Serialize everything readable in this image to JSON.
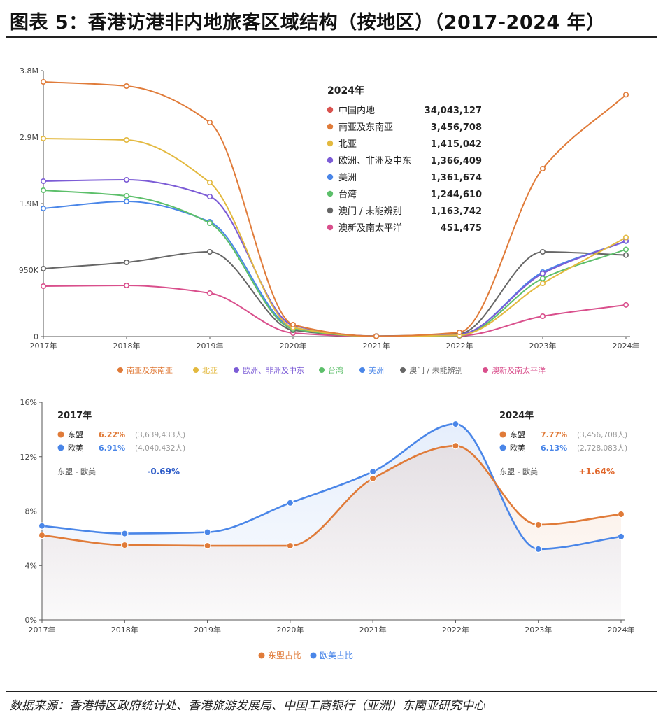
{
  "title": "图表 5：香港访港非内地旅客区域结构（按地区）（2017-2024 年）",
  "source": "数据来源：香港特区政府统计处、香港旅游发展局、中国工商银行（亚洲）东南亚研究中心",
  "chart_data": [
    {
      "type": "line",
      "title": "",
      "x": [
        "2017年",
        "2018年",
        "2019年",
        "2020年",
        "2021年",
        "2022年",
        "2023年",
        "2024年"
      ],
      "ylim": [
        0,
        3800000
      ],
      "yticks": [
        {
          "value": 0,
          "label": "0"
        },
        {
          "value": 950000,
          "label": "950K"
        },
        {
          "value": 1900000,
          "label": "1.9M"
        },
        {
          "value": 2850000,
          "label": "2.9M"
        },
        {
          "value": 3800000,
          "label": "3.8M"
        }
      ],
      "series": [
        {
          "name": "南亚及东南亚",
          "color": "#e07b39",
          "values": [
            3640000,
            3580000,
            3060000,
            170000,
            5000,
            60000,
            2400000,
            3456708
          ]
        },
        {
          "name": "北亚",
          "color": "#e3b93f",
          "values": [
            2830000,
            2810000,
            2200000,
            130000,
            4000,
            20000,
            760000,
            1415042
          ]
        },
        {
          "name": "欧洲、非洲及中东",
          "color": "#7c5cd6",
          "values": [
            2220000,
            2240000,
            2000000,
            160000,
            5000,
            30000,
            900000,
            1366409
          ]
        },
        {
          "name": "台湾",
          "color": "#5cbf6a",
          "values": [
            2090000,
            2010000,
            1620000,
            110000,
            3000,
            15000,
            830000,
            1244610
          ]
        },
        {
          "name": "美洲",
          "color": "#4a86e8",
          "values": [
            1830000,
            1930000,
            1640000,
            130000,
            5000,
            25000,
            920000,
            1361674
          ]
        },
        {
          "name": "澳门 / 未能辨别",
          "color": "#666666",
          "values": [
            970000,
            1060000,
            1210000,
            90000,
            8000,
            40000,
            1210000,
            1163742
          ]
        },
        {
          "name": "澳新及南太平洋",
          "color": "#d94f8c",
          "values": [
            720000,
            730000,
            620000,
            50000,
            3000,
            10000,
            290000,
            451475
          ]
        }
      ],
      "tooltip": {
        "title": "2024年",
        "items": [
          {
            "name": "中国内地",
            "value": "34,043,127",
            "color": "#d9534f"
          },
          {
            "name": "南亚及东南亚",
            "value": "3,456,708",
            "color": "#e07b39"
          },
          {
            "name": "北亚",
            "value": "1,415,042",
            "color": "#e3b93f"
          },
          {
            "name": "欧洲、非洲及中东",
            "value": "1,366,409",
            "color": "#7c5cd6"
          },
          {
            "name": "美洲",
            "value": "1,361,674",
            "color": "#4a86e8"
          },
          {
            "name": "台湾",
            "value": "1,244,610",
            "color": "#5cbf6a"
          },
          {
            "name": "澳门 / 未能辨别",
            "value": "1,163,742",
            "color": "#666666"
          },
          {
            "name": "澳新及南太平洋",
            "value": "451,475",
            "color": "#d94f8c"
          }
        ]
      },
      "legend": [
        "南亚及东南亚",
        "北亚",
        "欧洲、非洲及中东",
        "台湾",
        "美洲",
        "澳门 / 未能辨别",
        "澳新及南太平洋"
      ]
    },
    {
      "type": "area",
      "title": "",
      "x": [
        "2017年",
        "2018年",
        "2019年",
        "2020年",
        "2021年",
        "2022年",
        "2023年",
        "2024年"
      ],
      "ylim": [
        0,
        16
      ],
      "yticks": [
        {
          "value": 0,
          "label": "0%"
        },
        {
          "value": 4,
          "label": "4%"
        },
        {
          "value": 8,
          "label": "8%"
        },
        {
          "value": 12,
          "label": "12%"
        },
        {
          "value": 16,
          "label": "16%"
        }
      ],
      "series": [
        {
          "name": "东盟占比",
          "color": "#e07b39",
          "values": [
            6.22,
            5.5,
            5.45,
            5.45,
            10.4,
            12.8,
            7.0,
            7.77
          ]
        },
        {
          "name": "欧美占比",
          "color": "#4a86e8",
          "values": [
            6.91,
            6.35,
            6.45,
            8.6,
            10.9,
            14.4,
            5.2,
            6.13
          ]
        }
      ],
      "box_left": {
        "title": "2017年",
        "rows": [
          {
            "name": "东盟",
            "pct": "6.22%",
            "count": "(3,639,433人)",
            "color": "#e07b39"
          },
          {
            "name": "欧美",
            "pct": "6.91%",
            "count": "(4,040,432人)",
            "color": "#4a86e8"
          }
        ],
        "diff_label": "东盟 - 欧美",
        "diff_value": "-0.69%",
        "diff_color": "#2e5cc8"
      },
      "box_right": {
        "title": "2024年",
        "rows": [
          {
            "name": "东盟",
            "pct": "7.77%",
            "count": "(3,456,708人)",
            "color": "#e07b39"
          },
          {
            "name": "欧美",
            "pct": "6.13%",
            "count": "(2,728,083人)",
            "color": "#4a86e8"
          }
        ],
        "diff_label": "东盟 - 欧美",
        "diff_value": "+1.64%",
        "diff_color": "#e0662a"
      },
      "legend": [
        "东盟占比",
        "欧美占比"
      ]
    }
  ]
}
